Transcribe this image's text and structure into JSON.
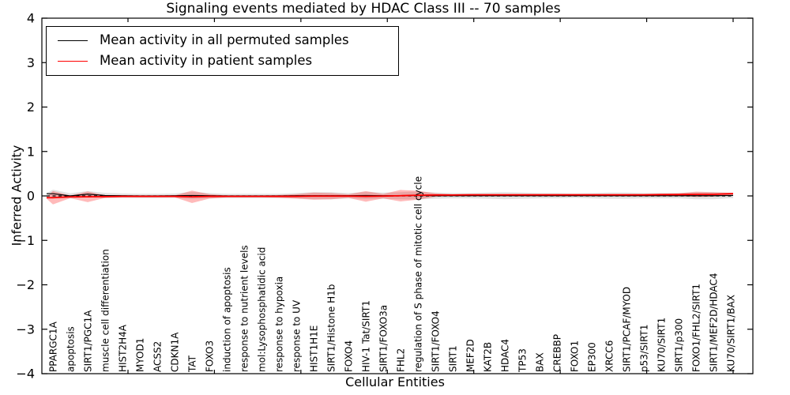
{
  "chart_data": {
    "type": "line",
    "title": "Signaling events mediated by HDAC Class III -- 70 samples",
    "xlabel": "Cellular Entities",
    "ylabel": "Inferred Activity",
    "ylim": [
      -4,
      4
    ],
    "yticks": [
      4,
      3,
      2,
      1,
      0,
      -1,
      -2,
      -3,
      -4
    ],
    "grid": false,
    "legend_position": "upper left",
    "background_color": "#ffffff",
    "zero_line": {
      "value": 0,
      "style": "dashed",
      "color": "#000000"
    },
    "categories": [
      "PPARGC1A",
      "apoptosis",
      "SIRT1/PGC1A",
      "muscle cell differentiation",
      "HIST2H4A",
      "MYOD1",
      "ACSS2",
      "CDKN1A",
      "TAT",
      "FOXO3",
      "induction of apoptosis",
      "response to nutrient levels",
      "mol:Lysophosphatidic acid",
      "response to hypoxia",
      "response to UV",
      "HIST1H1E",
      "SIRT1/Histone H1b",
      "FOXO4",
      "HIV-1 Tat/SIRT1",
      "SIRT1/FOXO3a",
      "FHL2",
      "regulation of S phase of mitotic cell cycle",
      "SIRT1/FOXO4",
      "SIRT1",
      "MEF2D",
      "KAT2B",
      "HDAC4",
      "TP53",
      "BAX",
      "CREBBP",
      "FOXO1",
      "EP300",
      "XRCC6",
      "SIRT1/PCAF/MYOD",
      "p53/SIRT1",
      "KU70/SIRT1",
      "SIRT1/p300",
      "FOXO1/FHL2/SIRT1",
      "SIRT1/MEF2D/HDAC4",
      "KU70/SIRT1/BAX"
    ],
    "series": [
      {
        "name": "Mean activity in all permuted samples",
        "color": "#000000",
        "band_color": "#999999",
        "band_opacity": 0.28,
        "values": [
          0.05,
          0,
          0.04,
          0.01,
          0.005,
          0,
          0,
          0.005,
          0.01,
          0.005,
          0,
          0,
          0,
          0,
          0.005,
          0.005,
          0.005,
          0.005,
          0.01,
          0.005,
          0.005,
          0.01,
          0.005,
          0.005,
          0.005,
          0.005,
          0.005,
          0.005,
          0.005,
          0.005,
          0.005,
          0.005,
          0.005,
          0.005,
          0.005,
          0.005,
          0.005,
          0.005,
          0.005,
          0.01
        ],
        "band_halfwidth": [
          0.09,
          0.06,
          0.07,
          0.06,
          0.05,
          0.05,
          0.05,
          0.05,
          0.08,
          0.06,
          0.05,
          0.05,
          0.05,
          0.05,
          0.06,
          0.08,
          0.08,
          0.06,
          0.08,
          0.07,
          0.08,
          0.09,
          0.07,
          0.06,
          0.06,
          0.07,
          0.08,
          0.07,
          0.06,
          0.06,
          0.05,
          0.06,
          0.07,
          0.07,
          0.06,
          0.06,
          0.06,
          0.08,
          0.08,
          0.06
        ]
      },
      {
        "name": "Mean activity in patient samples",
        "color": "#ff0000",
        "band_color": "#ff0000",
        "band_opacity": 0.27,
        "values": [
          -0.04,
          -0.02,
          -0.02,
          -0.015,
          -0.01,
          -0.01,
          -0.01,
          -0.01,
          -0.02,
          -0.01,
          -0.01,
          -0.01,
          -0.01,
          -0.01,
          -0.01,
          -0.005,
          -0.005,
          -0.005,
          -0.01,
          -0.005,
          0.005,
          0.015,
          0.02,
          0.02,
          0.025,
          0.025,
          0.025,
          0.025,
          0.025,
          0.025,
          0.025,
          0.025,
          0.025,
          0.025,
          0.025,
          0.03,
          0.03,
          0.035,
          0.035,
          0.05
        ],
        "band_halfwidth": [
          0.15,
          0.03,
          0.12,
          0.03,
          0.02,
          0.02,
          0.02,
          0.02,
          0.14,
          0.05,
          0.02,
          0.02,
          0.02,
          0.03,
          0.05,
          0.08,
          0.07,
          0.04,
          0.12,
          0.05,
          0.13,
          0.1,
          0.04,
          0.02,
          0.02,
          0.02,
          0.02,
          0.02,
          0.02,
          0.02,
          0.02,
          0.02,
          0.02,
          0.02,
          0.02,
          0.02,
          0.03,
          0.06,
          0.05,
          0.02
        ]
      }
    ]
  },
  "legend": {
    "items": [
      {
        "label": "Mean activity in all permuted samples",
        "color": "#000000"
      },
      {
        "label": "Mean activity in patient samples",
        "color": "#ff0000"
      }
    ]
  }
}
